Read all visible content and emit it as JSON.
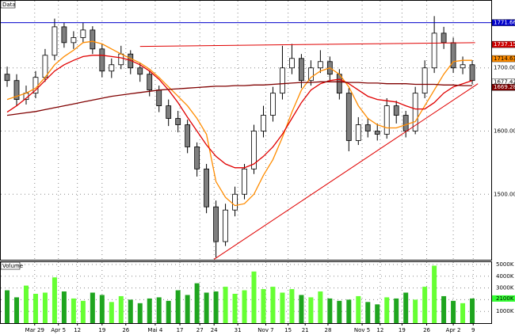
{
  "chart_data": [
    {
      "type": "candlestick",
      "title": "Data",
      "open": [
        1690,
        1680,
        1650,
        1660,
        1685,
        1720,
        1765,
        1740,
        1748,
        1760,
        1730,
        1695,
        1705,
        1722,
        1700,
        1690,
        1665,
        1640,
        1620,
        1610,
        1575,
        1540,
        1480,
        1425,
        1475,
        1500,
        1540,
        1600,
        1625,
        1660,
        1700,
        1715,
        1680,
        1700,
        1710,
        1690,
        1660,
        1585,
        1610,
        1600,
        1595,
        1640,
        1625,
        1600,
        1660,
        1700,
        1755,
        1740,
        1700,
        1705
      ],
      "high": [
        1702,
        1690,
        1672,
        1695,
        1730,
        1778,
        1772,
        1758,
        1772,
        1766,
        1738,
        1715,
        1735,
        1728,
        1708,
        1696,
        1672,
        1650,
        1632,
        1618,
        1582,
        1548,
        1490,
        1485,
        1512,
        1548,
        1610,
        1640,
        1670,
        1735,
        1738,
        1722,
        1712,
        1728,
        1718,
        1698,
        1668,
        1622,
        1620,
        1612,
        1652,
        1648,
        1632,
        1670,
        1712,
        1782,
        1765,
        1748,
        1718,
        1712
      ],
      "low": [
        1670,
        1640,
        1642,
        1652,
        1678,
        1712,
        1732,
        1730,
        1740,
        1722,
        1685,
        1684,
        1698,
        1690,
        1678,
        1655,
        1630,
        1608,
        1598,
        1565,
        1528,
        1470,
        1400,
        1418,
        1465,
        1492,
        1532,
        1590,
        1615,
        1650,
        1690,
        1668,
        1672,
        1692,
        1680,
        1650,
        1568,
        1578,
        1590,
        1585,
        1588,
        1612,
        1590,
        1595,
        1652,
        1692,
        1730,
        1692,
        1690,
        1674
      ],
      "close": [
        1680,
        1650,
        1660,
        1685,
        1720,
        1765,
        1740,
        1748,
        1760,
        1730,
        1695,
        1705,
        1722,
        1700,
        1690,
        1665,
        1640,
        1620,
        1610,
        1575,
        1540,
        1480,
        1425,
        1475,
        1500,
        1540,
        1600,
        1625,
        1660,
        1700,
        1715,
        1680,
        1700,
        1710,
        1690,
        1660,
        1585,
        1610,
        1600,
        1595,
        1640,
        1625,
        1600,
        1660,
        1700,
        1755,
        1740,
        1700,
        1705,
        1680
      ],
      "up_color": "#ffffff",
      "down_color": "#7f7f7f",
      "series": [
        {
          "color": "#ff8c00",
          "values": [
            1650,
            1655,
            1660,
            1668,
            1685,
            1705,
            1718,
            1728,
            1740,
            1742,
            1738,
            1730,
            1722,
            1715,
            1708,
            1698,
            1685,
            1670,
            1655,
            1640,
            1620,
            1595,
            1520,
            1495,
            1482,
            1485,
            1500,
            1530,
            1555,
            1590,
            1630,
            1665,
            1685,
            1695,
            1700,
            1690,
            1670,
            1640,
            1620,
            1610,
            1605,
            1605,
            1610,
            1615,
            1640,
            1665,
            1690,
            1710,
            1712,
            1712
          ]
        },
        {
          "color": "#e00000",
          "values": [
            1630,
            1640,
            1652,
            1665,
            1680,
            1695,
            1705,
            1712,
            1718,
            1720,
            1720,
            1718,
            1716,
            1712,
            1705,
            1695,
            1682,
            1665,
            1645,
            1622,
            1600,
            1578,
            1560,
            1548,
            1542,
            1542,
            1548,
            1560,
            1575,
            1595,
            1620,
            1645,
            1665,
            1675,
            1680,
            1682,
            1675,
            1665,
            1655,
            1650,
            1648,
            1646,
            1640,
            1635,
            1635,
            1645,
            1660,
            1670,
            1675,
            1680
          ]
        },
        {
          "color": "#800000",
          "values": [
            1625,
            1627,
            1629,
            1631,
            1634,
            1637,
            1640,
            1643,
            1646,
            1649,
            1652,
            1655,
            1657,
            1659,
            1661,
            1663,
            1665,
            1666,
            1667,
            1668,
            1669,
            1670,
            1671,
            1671,
            1672,
            1672,
            1673,
            1673,
            1674,
            1675,
            1676,
            1677,
            1677,
            1678,
            1678,
            1678,
            1677,
            1677,
            1676,
            1676,
            1675,
            1675,
            1675,
            1674,
            1674,
            1674,
            1673,
            1673,
            1672,
            1672
          ]
        }
      ],
      "lines": [
        {
          "color": "#0000cc",
          "x": [
            -0.67,
            51
          ],
          "y": [
            1771.66,
            1771.66
          ]
        },
        {
          "color": "#e00000",
          "x": [
            14,
            49.3
          ],
          "y": [
            1734,
            1740
          ]
        },
        {
          "color": "#e00000",
          "x": [
            21.8,
            49.6
          ],
          "y": [
            1397,
            1675
          ]
        }
      ],
      "price_labels": [
        {
          "value": 1771.66,
          "label": "1771.66",
          "color": "#0000cc",
          "text_color": "#ffffff"
        },
        {
          "value": 1737.15,
          "label": "1737.15",
          "color": "#cc0000",
          "text_color": "#ffffff"
        },
        {
          "value": 1714.63,
          "label": "1714.63",
          "color": "#ff8c00",
          "text_color": "#000000"
        },
        {
          "value": 1677.42,
          "label": "1677.42",
          "color": "#ffffff",
          "text_color": "#000000"
        },
        {
          "value": 1669.28,
          "label": "1669.28",
          "color": "#800000",
          "text_color": "#ffffff"
        }
      ],
      "xlim": [
        -0.67,
        51
      ],
      "ylim": [
        1396.25,
        1806.25
      ],
      "yticks": [
        {
          "value": 1500,
          "label": "1500.00"
        },
        {
          "value": 1600,
          "label": "1600.00"
        },
        {
          "value": 1700,
          "label": "1700.00"
        }
      ],
      "xticks": [
        {
          "value": 2.9,
          "label": "Mar 29"
        },
        {
          "value": 5.4,
          "label": "Apr 5"
        },
        {
          "value": 7.4,
          "label": "12"
        },
        {
          "value": 10,
          "label": "19"
        },
        {
          "value": 12.5,
          "label": "26"
        },
        {
          "value": 15.6,
          "label": "Mai 4"
        },
        {
          "value": 18.2,
          "label": "17"
        },
        {
          "value": 20.3,
          "label": "27"
        },
        {
          "value": 21.8,
          "label": "24"
        },
        {
          "value": 24.3,
          "label": "31"
        },
        {
          "value": 27.25,
          "label": "Nov 7"
        },
        {
          "value": 29.6,
          "label": "15"
        },
        {
          "value": 31.4,
          "label": "21"
        },
        {
          "value": 33.8,
          "label": "28"
        },
        {
          "value": 37.4,
          "label": "Nov 5"
        },
        {
          "value": 39.3,
          "label": "12"
        },
        {
          "value": 41.6,
          "label": "19"
        },
        {
          "value": 44.2,
          "label": "26"
        },
        {
          "value": 47,
          "label": "Apr 2"
        },
        {
          "value": 49.1,
          "label": "9"
        }
      ],
      "grid": true
    },
    {
      "type": "bar",
      "title": "Volume",
      "values": [
        2800,
        2200,
        3200,
        2500,
        2600,
        3900,
        2700,
        2100,
        1900,
        2600,
        2400,
        1800,
        2300,
        2000,
        1700,
        2100,
        2200,
        1900,
        2800,
        2400,
        3400,
        2600,
        2700,
        3100,
        2500,
        2800,
        4400,
        2900,
        3100,
        2600,
        2900,
        2400,
        2200,
        2700,
        2100,
        1900,
        2000,
        2300,
        1800,
        1600,
        2200,
        2100,
        2600,
        2000,
        3100,
        4900,
        2300,
        1900,
        1700,
        2100
      ],
      "up_color": "#66ff33",
      "down_color": "#1fa51f",
      "ylim": [
        0,
        5200
      ],
      "yticks": [
        {
          "value": 1000,
          "label": "1000K"
        },
        {
          "value": 2000,
          "label": "2000K"
        },
        {
          "value": 3000,
          "label": "3000K"
        },
        {
          "value": 4000,
          "label": "4000K"
        },
        {
          "value": 5000,
          "label": "5000K"
        }
      ],
      "last_label": {
        "value": 2100,
        "label": "2100K",
        "color": "#33ff33"
      }
    }
  ]
}
